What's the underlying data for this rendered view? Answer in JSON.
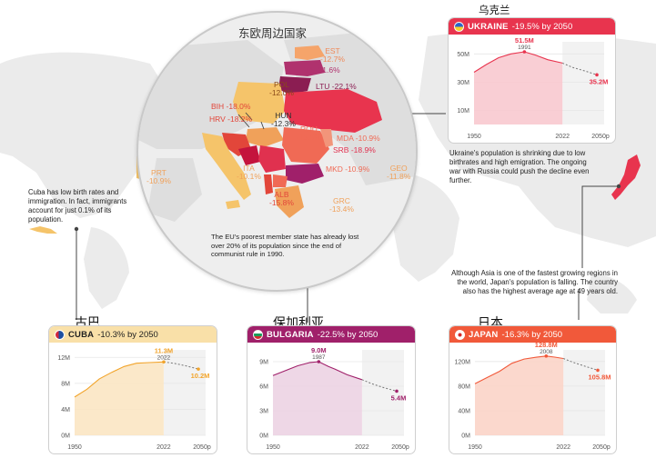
{
  "lens": {
    "title": "东欧周边国家",
    "labels": [
      {
        "id": "est",
        "text": "EST\n-12.7%",
        "color": "#ef8a5a"
      },
      {
        "id": "lva",
        "text": "LVA -21.6%",
        "color": "#b0326e"
      },
      {
        "id": "ltu",
        "text": "LTU -22.1%",
        "color": "#8b1d52"
      },
      {
        "id": "pol",
        "text": "POL\n-12.0%",
        "color": "#8a4a1a"
      },
      {
        "id": "bih",
        "text": "BIH -18.0%",
        "color": "#e2463a"
      },
      {
        "id": "hrv",
        "text": "HRV -18.2%",
        "color": "#e2463a"
      },
      {
        "id": "hun",
        "text": "HUN\n-12.3%",
        "color": "#333333"
      },
      {
        "id": "rou",
        "text": "ROU\n-15.5%",
        "color": "#f06a55"
      },
      {
        "id": "mda",
        "text": "MDA -10.9%",
        "color": "#f06a55"
      },
      {
        "id": "srb",
        "text": "SRB -18.9%",
        "color": "#e0314f"
      },
      {
        "id": "mkd",
        "text": "MKD -10.9%",
        "color": "#f06a55"
      },
      {
        "id": "ita",
        "text": "ITA\n-10.1%",
        "color": "#f0a15a"
      },
      {
        "id": "alb",
        "text": "ALB\n-15.8%",
        "color": "#e2463a"
      },
      {
        "id": "grc",
        "text": "GRC\n-13.4%",
        "color": "#f0a15a"
      },
      {
        "id": "geo",
        "text": "GEO\n-11.8%",
        "color": "#f0a15a"
      },
      {
        "id": "prt",
        "text": "PRT\n-10.9%",
        "color": "#f0a15a"
      }
    ],
    "note": "The EU's poorest member state has already  lost over 20% of its population since the end of communist rule in 1990."
  },
  "notes": {
    "cuba": "Cuba has low birth rates and immigration. In fact, immigrants account for just 0.1% of its population.",
    "ukraine": "Ukraine's population is shrinking due to low birthrates and high emigration. The ongoing war with Russia could push the decline even further.",
    "japan": "Although Asia is one of the fastest growing regions in the world, Japan's population is falling. The country also has the  highest average age at 49 years old."
  },
  "cjk_labels": {
    "ukraine": "乌克兰",
    "cuba": "古巴",
    "bulgaria": "保加利亚",
    "japan": "日本"
  },
  "cards": {
    "ukraine": {
      "name": "UKRAINE",
      "change": "-19.5% by 2050",
      "color": "#e8344e"
    },
    "cuba": {
      "name": "CUBA",
      "change": "-10.3% by 2050",
      "color": "#f9e0a8"
    },
    "bulgaria": {
      "name": "BULGARIA",
      "change": "-22.5% by 2050",
      "color": "#a0206a"
    },
    "japan": {
      "name": "JAPAN",
      "change": "-16.3% by 2050",
      "color": "#f1593a"
    }
  },
  "chart_data": [
    {
      "type": "area",
      "title": "UKRAINE -19.5% by 2050",
      "x": [
        1950,
        1960,
        1970,
        1980,
        1991,
        2000,
        2010,
        2022,
        2030,
        2040,
        2050
      ],
      "y": [
        37.0,
        42.5,
        47.3,
        50.0,
        51.5,
        49.2,
        45.9,
        43.5,
        40.5,
        38.0,
        35.2
      ],
      "projection_from": 2022,
      "peak": {
        "x": 1991,
        "label": "51.5M",
        "year_label": "1991"
      },
      "end_label": "35.2M",
      "yticks": [
        "10M",
        "30M",
        "50M"
      ],
      "ytick_values": [
        10,
        30,
        50
      ],
      "ylim": [
        0,
        56
      ],
      "xticks": [
        "1950",
        "2022",
        "2050p"
      ],
      "xtick_values": [
        1950,
        2022,
        2050
      ],
      "color": "#e8344e",
      "fill": "#f8c9cf"
    },
    {
      "type": "area",
      "title": "CUBA -10.3% by 2050",
      "x": [
        1950,
        1960,
        1970,
        1980,
        1990,
        2000,
        2010,
        2022,
        2030,
        2040,
        2050
      ],
      "y": [
        5.9,
        7.1,
        8.7,
        9.7,
        10.6,
        11.1,
        11.2,
        11.3,
        11.1,
        10.7,
        10.2
      ],
      "projection_from": 2022,
      "peak": {
        "x": 2022,
        "label": "11.3M",
        "year_label": "2022"
      },
      "end_label": "10.2M",
      "yticks": [
        "0M",
        "4M",
        "8M",
        "12M"
      ],
      "ytick_values": [
        0,
        4,
        8,
        12
      ],
      "ylim": [
        0,
        12.6
      ],
      "xticks": [
        "1950",
        "2022",
        "2050p"
      ],
      "xtick_values": [
        1950,
        2022,
        2050
      ],
      "color": "#f2a42b",
      "fill": "#fbe6c3"
    },
    {
      "type": "area",
      "title": "BULGARIA -22.5% by 2050",
      "x": [
        1950,
        1960,
        1970,
        1980,
        1987,
        1995,
        2000,
        2010,
        2022,
        2030,
        2040,
        2050
      ],
      "y": [
        7.3,
        7.9,
        8.5,
        8.9,
        9.0,
        8.4,
        8.1,
        7.4,
        6.8,
        6.3,
        5.8,
        5.4
      ],
      "projection_from": 2022,
      "peak": {
        "x": 1987,
        "label": "9.0M",
        "year_label": "1987"
      },
      "end_label": "5.4M",
      "yticks": [
        "0M",
        "3M",
        "6M",
        "9M"
      ],
      "ytick_values": [
        0,
        3,
        6,
        9
      ],
      "ylim": [
        0,
        10
      ],
      "xticks": [
        "1950",
        "2022",
        "2050p"
      ],
      "xtick_values": [
        1950,
        2022,
        2050
      ],
      "color": "#a0206a",
      "fill": "#ecd3e3"
    },
    {
      "type": "area",
      "title": "JAPAN -16.3% by 2050",
      "x": [
        1950,
        1960,
        1970,
        1980,
        1990,
        2000,
        2008,
        2015,
        2022,
        2030,
        2040,
        2050
      ],
      "y": [
        84,
        94,
        104,
        117,
        124,
        127,
        128.8,
        127.1,
        124.9,
        118.5,
        112,
        105.8
      ],
      "projection_from": 2022,
      "peak": {
        "x": 2008,
        "label": "128.8M",
        "year_label": "2008"
      },
      "end_label": "105.8M",
      "yticks": [
        "0M",
        "40M",
        "80M",
        "120M"
      ],
      "ytick_values": [
        0,
        40,
        80,
        120
      ],
      "ylim": [
        0,
        133
      ],
      "xticks": [
        "1950",
        "2022",
        "2050p"
      ],
      "xtick_values": [
        1950,
        2022,
        2050
      ],
      "color": "#f1593a",
      "fill": "#fbd4c8"
    }
  ]
}
